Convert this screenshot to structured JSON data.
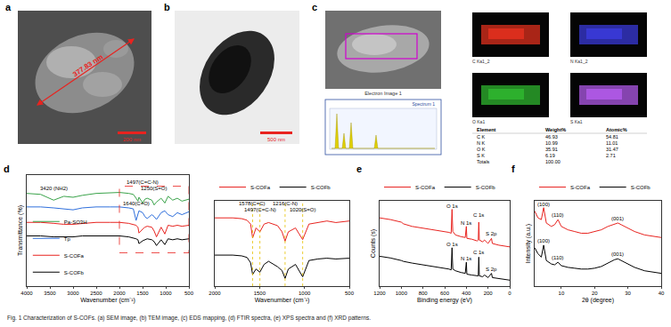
{
  "panels": {
    "a": {
      "label": "a",
      "measure": "377.83 nm",
      "scale_bar": "200 nm"
    },
    "b": {
      "label": "b",
      "scale_bar": "500 nm"
    },
    "c": {
      "label": "c",
      "image_title": "Electron Image 1",
      "maps": [
        "C Ka1_2",
        "N Ka1_2",
        "O Ka1",
        "S Ka1"
      ],
      "map_colors": [
        "#e0301e",
        "#3a3ad8",
        "#2fb52f",
        "#b05ae8"
      ],
      "spectrum_title": "Spectrum 1",
      "table": {
        "header": [
          "Element",
          "Weight%",
          "Atomic%"
        ],
        "rows": [
          [
            "C K",
            "46.93",
            "54.81"
          ],
          [
            "N K",
            "10.99",
            "11.01"
          ],
          [
            "O K",
            "35.91",
            "31.47"
          ],
          [
            "S K",
            "6.19",
            "2.71"
          ],
          [
            "Totals",
            "100.00",
            ""
          ]
        ]
      }
    }
  },
  "caption": "Fig. 1 Characterization of S-COFs. (a) SEM image, (b) TEM image, (c) EDS mapping, (d) FTIR spectra, (e) XPS spectra and (f) XRD patterns.",
  "chart_data": [
    {
      "type": "line",
      "label": "d",
      "x_label": "Wavenumber (cm⁻¹)",
      "y_label": "Transmittance (%)",
      "x": [
        4000,
        3700,
        3420,
        3200,
        3000,
        2800,
        2500,
        2200,
        2000,
        1800,
        1700,
        1640,
        1600,
        1578,
        1497,
        1450,
        1400,
        1300,
        1250,
        1200,
        1100,
        1020,
        950,
        850,
        750,
        650,
        500
      ],
      "series": [
        {
          "name": "Pa-SO3H",
          "color": "#3aa34a",
          "values": [
            96,
            95,
            89,
            93,
            92,
            94,
            96,
            97,
            97,
            96,
            95,
            91,
            88,
            92,
            86,
            90,
            91,
            89,
            84,
            87,
            91,
            86,
            93,
            89,
            91,
            88,
            90
          ]
        },
        {
          "name": "Tp",
          "color": "#2f6fdc",
          "values": [
            82,
            82,
            81,
            80,
            79,
            81,
            82,
            82,
            82,
            81,
            80,
            68,
            74,
            78,
            76,
            72,
            70,
            74,
            72,
            69,
            76,
            78,
            74,
            72,
            76,
            74,
            77
          ]
        },
        {
          "name": "S-COFa",
          "color": "#e8231f",
          "values": [
            66,
            66,
            65,
            64,
            64,
            65,
            66,
            66,
            66,
            65,
            64,
            63,
            61,
            55,
            59,
            61,
            62,
            61,
            57,
            51,
            61,
            54,
            63,
            62,
            63,
            62,
            63
          ]
        },
        {
          "name": "S-COFb",
          "color": "#000000",
          "values": [
            52,
            52,
            51,
            51,
            51,
            52,
            52,
            52,
            52,
            51,
            50,
            49,
            48,
            44,
            47,
            48,
            49,
            48,
            46,
            42,
            48,
            43,
            49,
            48,
            49,
            48,
            49
          ]
        }
      ],
      "xlim": [
        4000,
        500
      ],
      "xticks": [
        4000,
        3500,
        3000,
        2500,
        2000,
        1500,
        1000,
        500
      ],
      "ylim": [
        0,
        115
      ],
      "tick_labels": "x",
      "legend": "bottom-left",
      "grid": false,
      "annotations": [
        {
          "text": "3420 (NH2)",
          "x": 3420,
          "y": 101
        },
        {
          "text": "1497(C=C-N)",
          "x": 1497,
          "y": 108
        },
        {
          "text": "1250(S=O)",
          "x": 1250,
          "y": 101
        },
        {
          "text": "1640(C=O)",
          "x": 1640,
          "y": 86
        }
      ]
    },
    {
      "type": "line",
      "x_label": "Wavenumber (cm⁻¹)",
      "x": [
        2000,
        1800,
        1700,
        1640,
        1600,
        1578,
        1540,
        1497,
        1450,
        1400,
        1300,
        1250,
        1216,
        1180,
        1100,
        1020,
        950,
        850,
        750,
        650,
        500
      ],
      "series": [
        {
          "name": "S-COFa",
          "color": "#e8231f",
          "values": [
            88,
            88,
            87,
            85,
            80,
            62,
            75,
            70,
            80,
            82,
            78,
            70,
            58,
            70,
            75,
            60,
            80,
            82,
            84,
            82,
            84
          ]
        },
        {
          "name": "S-COFb",
          "color": "#000000",
          "values": [
            40,
            40,
            39,
            37,
            30,
            15,
            22,
            18,
            28,
            32,
            25,
            20,
            10,
            22,
            28,
            12,
            33,
            35,
            36,
            35,
            36
          ]
        }
      ],
      "xlim": [
        2000,
        500
      ],
      "xticks": [
        2000,
        1500,
        1000,
        500
      ],
      "ylim": [
        0,
        110
      ],
      "tick_labels": "x",
      "legend": "top",
      "grid": false,
      "annotations": [
        {
          "text": "1578(C=C)",
          "x": 1578,
          "y": 106
        },
        {
          "text": "1497(C=C-N)",
          "x": 1497,
          "y": 98
        },
        {
          "text": "1216(C-N)",
          "x": 1216,
          "y": 106
        },
        {
          "text": "1020(S=O)",
          "x": 1020,
          "y": 98
        }
      ]
    },
    {
      "type": "line",
      "label": "e",
      "x_label": "Binding energy (eV)",
      "y_label": "Counts (s)",
      "x": [
        1200,
        1100,
        1000,
        980,
        900,
        800,
        700,
        600,
        560,
        540,
        532,
        525,
        500,
        450,
        410,
        400,
        395,
        350,
        300,
        290,
        285,
        280,
        250,
        232,
        200,
        168,
        160,
        100,
        50,
        0
      ],
      "series": [
        {
          "name": "S-COFa",
          "color": "#e8231f",
          "values": [
            80,
            78,
            75,
            73,
            70,
            68,
            66,
            64,
            63,
            62,
            90,
            64,
            60,
            58,
            57,
            70,
            56,
            55,
            53,
            54,
            75,
            54,
            52,
            54,
            50,
            56,
            50,
            48,
            47,
            46
          ]
        },
        {
          "name": "S-COFb",
          "color": "#000000",
          "values": [
            35,
            33,
            30,
            29,
            27,
            25,
            23,
            21,
            20,
            19,
            45,
            20,
            18,
            16,
            15,
            28,
            14,
            13,
            12,
            12,
            34,
            12,
            11,
            13,
            10,
            15,
            10,
            9,
            8,
            7
          ]
        }
      ],
      "xlim": [
        1200,
        0
      ],
      "xticks": [
        1200,
        1000,
        800,
        600,
        400,
        200,
        0
      ],
      "ylim": [
        0,
        100
      ],
      "tick_labels": "x",
      "legend": "top",
      "grid": false,
      "annotations": [
        {
          "text": "O 1s",
          "x": 532,
          "y": 94
        },
        {
          "text": "N 1s",
          "x": 400,
          "y": 74
        },
        {
          "text": "C 1s",
          "x": 285,
          "y": 83
        },
        {
          "text": "S 2p",
          "x": 168,
          "y": 61
        },
        {
          "text": "O 1s",
          "x": 532,
          "y": 49
        },
        {
          "text": "N 1s",
          "x": 400,
          "y": 32
        },
        {
          "text": "C 1s",
          "x": 285,
          "y": 40
        },
        {
          "text": "S 2p",
          "x": 168,
          "y": 20
        }
      ]
    },
    {
      "type": "line",
      "label": "f",
      "x_label": "2θ (degree)",
      "y_label": "Intensity (a.u.)",
      "x": [
        2,
        3,
        4,
        4.7,
        5.5,
        7,
        8,
        9,
        10,
        12,
        14,
        16,
        18,
        20,
        22,
        24,
        26,
        27,
        28,
        30,
        32,
        35,
        38,
        40
      ],
      "series": [
        {
          "name": "S-COFa",
          "color": "#e8231f",
          "values": [
            88,
            80,
            78,
            92,
            74,
            70,
            72,
            78,
            70,
            66,
            64,
            62,
            62,
            64,
            66,
            70,
            73,
            74,
            72,
            68,
            64,
            60,
            58,
            57
          ]
        },
        {
          "name": "S-COFb",
          "color": "#000000",
          "values": [
            45,
            38,
            34,
            48,
            30,
            26,
            25,
            28,
            24,
            22,
            21,
            20,
            20,
            21,
            23,
            27,
            31,
            32,
            30,
            26,
            22,
            18,
            16,
            15
          ]
        }
      ],
      "xlim": [
        2,
        40
      ],
      "xticks": [
        10,
        20,
        30,
        40
      ],
      "ylim": [
        0,
        100
      ],
      "tick_labels": "x",
      "legend": "top",
      "grid": false,
      "annotations": [
        {
          "text": "(100)",
          "x": 4.7,
          "y": 96
        },
        {
          "text": "(110)",
          "x": 9,
          "y": 83
        },
        {
          "text": "(001)",
          "x": 27,
          "y": 79
        },
        {
          "text": "(100)",
          "x": 4.7,
          "y": 53
        },
        {
          "text": "(110)",
          "x": 9,
          "y": 33
        },
        {
          "text": "(001)",
          "x": 27,
          "y": 37
        }
      ]
    }
  ]
}
